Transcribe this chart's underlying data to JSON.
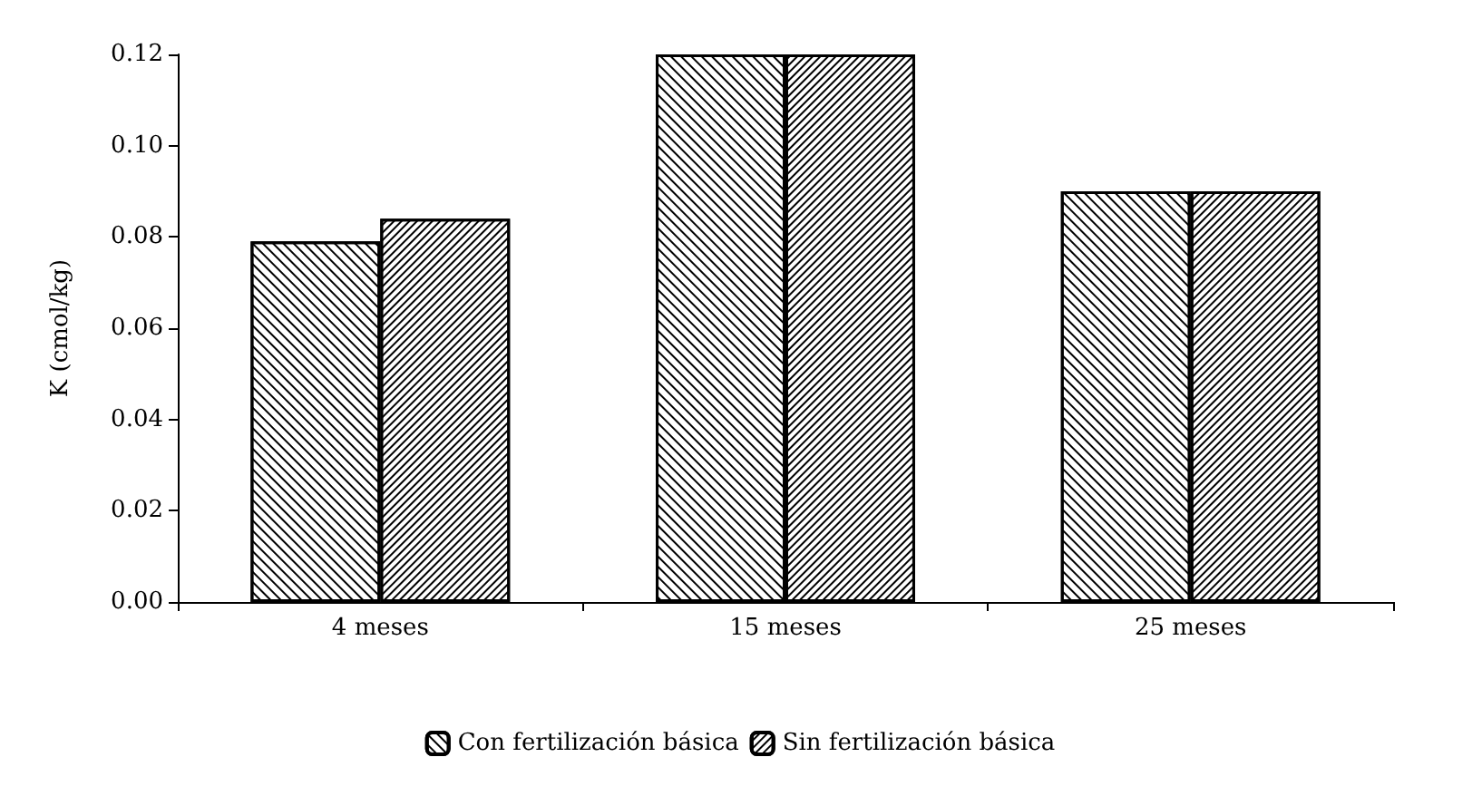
{
  "chart_data": {
    "type": "bar",
    "ylabel": "K (cmol/kg)",
    "categories": [
      "4 meses",
      "15 meses",
      "25 meses"
    ],
    "series": [
      {
        "name": "Con fertilización básica",
        "color": "#ffffff",
        "values": [
          0.079,
          0.12,
          0.09
        ]
      },
      {
        "name": "Sin fertilización básica",
        "color": "#ffffff",
        "values": [
          0.084,
          0.12,
          0.09
        ]
      }
    ],
    "ylim": [
      0,
      0.12
    ],
    "yticks": [
      {
        "value": 0,
        "label": "0.00"
      },
      {
        "value": 0.02,
        "label": "0.02"
      },
      {
        "value": 0.04,
        "label": "0.04"
      },
      {
        "value": 0.06,
        "label": "0.06"
      },
      {
        "value": 0.08,
        "label": "0.08"
      },
      {
        "value": 0.1,
        "label": "0.10"
      },
      {
        "value": 0.12,
        "label": "0.12"
      }
    ],
    "grid": false,
    "legend": "bottom"
  }
}
